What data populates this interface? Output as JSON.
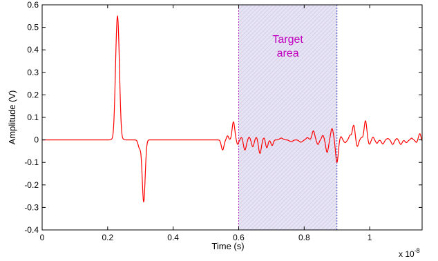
{
  "chart_data": {
    "type": "line",
    "title": "",
    "xlabel": "Time (s)",
    "ylabel": "Amplitude (V)",
    "x_exponent": {
      "base": "x 10",
      "power": "-8"
    },
    "xlim": [
      0,
      1.16
    ],
    "ylim": [
      -0.4,
      0.6
    ],
    "x_ticks": [
      0,
      0.2,
      0.4,
      0.6,
      0.8,
      1
    ],
    "x_tick_labels": [
      "0",
      "0.2",
      "0.4",
      "0.6",
      "0.8",
      "1"
    ],
    "y_ticks": [
      -0.4,
      -0.3,
      -0.2,
      -0.1,
      0,
      0.1,
      0.2,
      0.3,
      0.4,
      0.5,
      0.6
    ],
    "y_tick_labels": [
      "-0.4",
      "-0.3",
      "-0.2",
      "-0.1",
      "0",
      "0.1",
      "0.2",
      "0.3",
      "0.4",
      "0.5",
      "0.6"
    ],
    "grid": false,
    "series": [
      {
        "color": "#ff0000",
        "pulses": [
          {
            "t": 0.23,
            "a": 0.55,
            "w": 0.006
          },
          {
            "t": 0.219,
            "a": -0.02,
            "w": 0.0035
          },
          {
            "t": 0.241,
            "a": -0.02,
            "w": 0.0035
          },
          {
            "t": 0.297,
            "a": -0.035,
            "w": 0.004
          },
          {
            "t": 0.31,
            "a": -0.275,
            "w": 0.0045
          },
          {
            "t": 0.551,
            "a": -0.045,
            "w": 0.004
          },
          {
            "t": 0.566,
            "a": 0.018,
            "w": 0.003
          },
          {
            "t": 0.584,
            "a": 0.08,
            "w": 0.004
          },
          {
            "t": 0.597,
            "a": -0.02,
            "w": 0.003
          },
          {
            "t": 0.609,
            "a": 0.012,
            "w": 0.003
          },
          {
            "t": 0.619,
            "a": -0.045,
            "w": 0.004
          },
          {
            "t": 0.632,
            "a": 0.012,
            "w": 0.003
          },
          {
            "t": 0.643,
            "a": -0.03,
            "w": 0.0035
          },
          {
            "t": 0.654,
            "a": 0.012,
            "w": 0.003
          },
          {
            "t": 0.665,
            "a": -0.06,
            "w": 0.004
          },
          {
            "t": 0.677,
            "a": 0.01,
            "w": 0.003
          },
          {
            "t": 0.686,
            "a": -0.035,
            "w": 0.0035
          },
          {
            "t": 0.702,
            "a": -0.025,
            "w": 0.0035
          },
          {
            "t": 0.73,
            "a": 0.008,
            "w": 0.005
          },
          {
            "t": 0.76,
            "a": -0.008,
            "w": 0.005
          },
          {
            "t": 0.79,
            "a": -0.01,
            "w": 0.005
          },
          {
            "t": 0.81,
            "a": 0.01,
            "w": 0.004
          },
          {
            "t": 0.828,
            "a": 0.04,
            "w": 0.004
          },
          {
            "t": 0.842,
            "a": -0.02,
            "w": 0.0035
          },
          {
            "t": 0.857,
            "a": 0.02,
            "w": 0.0035
          },
          {
            "t": 0.87,
            "a": -0.055,
            "w": 0.004
          },
          {
            "t": 0.885,
            "a": 0.05,
            "w": 0.004
          },
          {
            "t": 0.9,
            "a": -0.1,
            "w": 0.004
          },
          {
            "t": 0.912,
            "a": 0.015,
            "w": 0.0035
          },
          {
            "t": 0.925,
            "a": -0.012,
            "w": 0.004
          },
          {
            "t": 0.94,
            "a": 0.02,
            "w": 0.0035
          },
          {
            "t": 0.951,
            "a": 0.065,
            "w": 0.004
          },
          {
            "t": 0.962,
            "a": -0.03,
            "w": 0.0035
          },
          {
            "t": 0.975,
            "a": 0.01,
            "w": 0.003
          },
          {
            "t": 0.987,
            "a": 0.085,
            "w": 0.004
          },
          {
            "t": 0.999,
            "a": -0.02,
            "w": 0.0035
          },
          {
            "t": 1.01,
            "a": 0.012,
            "w": 0.003
          },
          {
            "t": 1.022,
            "a": -0.015,
            "w": 0.0035
          },
          {
            "t": 1.04,
            "a": -0.018,
            "w": 0.004
          },
          {
            "t": 1.055,
            "a": 0.006,
            "w": 0.004
          },
          {
            "t": 1.07,
            "a": -0.02,
            "w": 0.004
          },
          {
            "t": 1.083,
            "a": 0.006,
            "w": 0.003
          },
          {
            "t": 1.095,
            "a": -0.02,
            "w": 0.004
          },
          {
            "t": 1.112,
            "a": -0.012,
            "w": 0.004
          },
          {
            "t": 1.128,
            "a": 0.008,
            "w": 0.003
          },
          {
            "t": 1.143,
            "a": -0.012,
            "w": 0.0035
          },
          {
            "t": 1.153,
            "a": 0.028,
            "w": 0.004
          },
          {
            "t": 1.16,
            "a": -0.01,
            "w": 0.003
          }
        ]
      }
    ],
    "region": {
      "label_lines": [
        "Target",
        "area"
      ],
      "x_start": 0.6,
      "x_end": 0.9,
      "fill": "#e8e6f6",
      "hatch_color": "#d6cfe8",
      "border_left": "#b020b0",
      "border_right": "#3040c0",
      "text_color": "#c000c0"
    }
  }
}
